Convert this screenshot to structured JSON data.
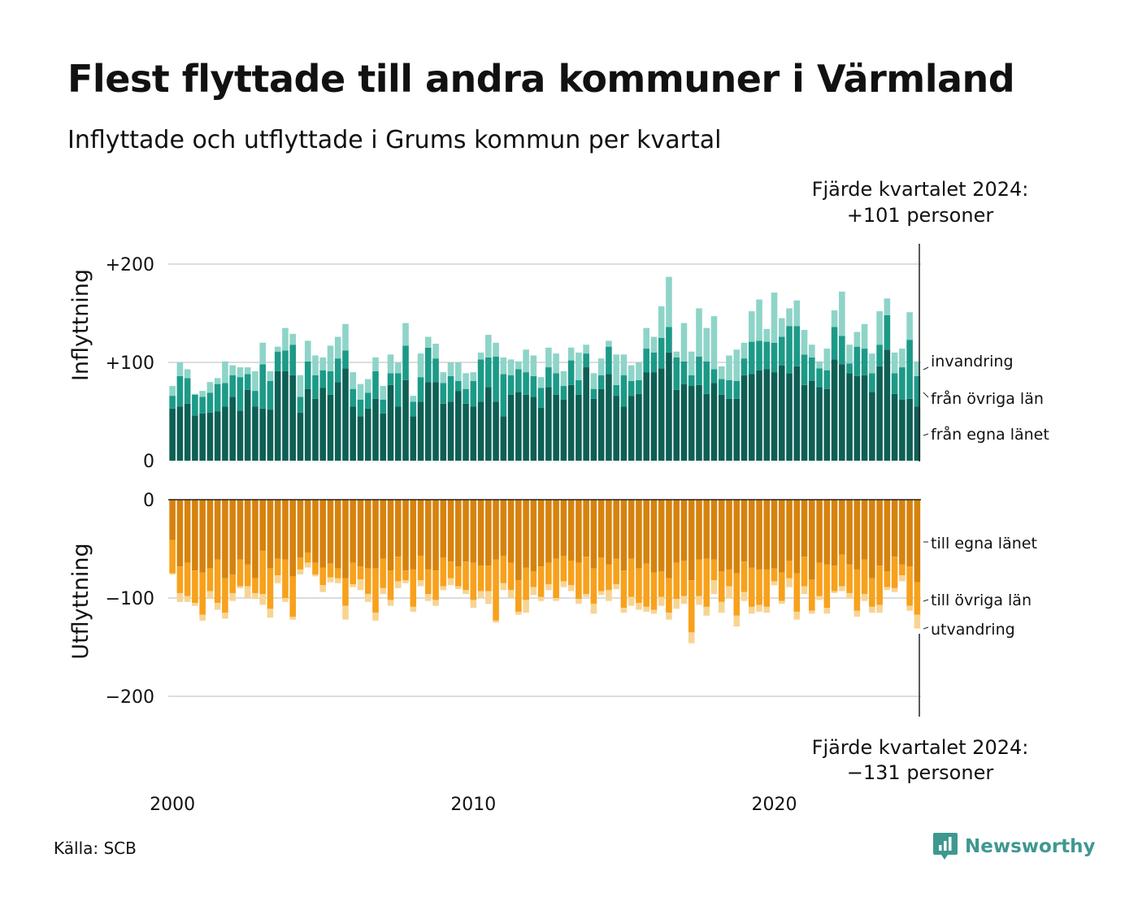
{
  "title": "Flest flyttade till andra kommuner i Värmland",
  "subtitle": "Inflyttade och utflyttade i Grums kommun per kvartal",
  "source": "Källa: SCB",
  "brand": "Newsworthy",
  "annotation_top": {
    "line1": "Fjärde kvartalet 2024:",
    "line2": "+101 personer"
  },
  "annotation_bottom": {
    "line1": "Fjärde kvartalet 2024:",
    "line2": "−131 personer"
  },
  "colors": {
    "in_own": "#0e5f55",
    "in_other": "#1c9a88",
    "in_imm": "#8ed4c8",
    "out_own": "#d6830e",
    "out_other": "#f7a11c",
    "out_emi": "#f8d493",
    "grid": "#dddddd",
    "axis": "#222222"
  },
  "chart_data": [
    {
      "type": "bar",
      "stacked": true,
      "ylabel": "Inflyttning",
      "ylim": [
        0,
        220
      ],
      "yticks": [
        {
          "value": 0,
          "label": "0"
        },
        {
          "value": 100,
          "label": "+100"
        },
        {
          "value": 200,
          "label": "+200"
        }
      ],
      "xticks": [
        {
          "value": 2000,
          "label": "2000"
        },
        {
          "value": 2010,
          "label": "2010"
        },
        {
          "value": 2020,
          "label": "2020"
        }
      ],
      "grid": true,
      "x": [
        "2000 Q1",
        "2000 Q2",
        "2000 Q3",
        "2000 Q4",
        "2001 Q1",
        "2001 Q2",
        "2001 Q3",
        "2001 Q4",
        "2002 Q1",
        "2002 Q2",
        "2002 Q3",
        "2002 Q4",
        "2003 Q1",
        "2003 Q2",
        "2003 Q3",
        "2003 Q4",
        "2004 Q1",
        "2004 Q2",
        "2004 Q3",
        "2004 Q4",
        "2005 Q1",
        "2005 Q2",
        "2005 Q3",
        "2005 Q4",
        "2006 Q1",
        "2006 Q2",
        "2006 Q3",
        "2006 Q4",
        "2007 Q1",
        "2007 Q2",
        "2007 Q3",
        "2007 Q4",
        "2008 Q1",
        "2008 Q2",
        "2008 Q3",
        "2008 Q4",
        "2009 Q1",
        "2009 Q2",
        "2009 Q3",
        "2009 Q4",
        "2010 Q1",
        "2010 Q2",
        "2010 Q3",
        "2010 Q4",
        "2011 Q1",
        "2011 Q2",
        "2011 Q3",
        "2011 Q4",
        "2012 Q1",
        "2012 Q2",
        "2012 Q3",
        "2012 Q4",
        "2013 Q1",
        "2013 Q2",
        "2013 Q3",
        "2013 Q4",
        "2014 Q1",
        "2014 Q2",
        "2014 Q3",
        "2014 Q4",
        "2015 Q1",
        "2015 Q2",
        "2015 Q3",
        "2015 Q4",
        "2016 Q1",
        "2016 Q2",
        "2016 Q3",
        "2016 Q4",
        "2017 Q1",
        "2017 Q2",
        "2017 Q3",
        "2017 Q4",
        "2018 Q1",
        "2018 Q2",
        "2018 Q3",
        "2018 Q4",
        "2019 Q1",
        "2019 Q2",
        "2019 Q3",
        "2019 Q4",
        "2020 Q1",
        "2020 Q2",
        "2020 Q3",
        "2020 Q4",
        "2021 Q1",
        "2021 Q2",
        "2021 Q3",
        "2021 Q4",
        "2022 Q1",
        "2022 Q2",
        "2022 Q3",
        "2022 Q4",
        "2023 Q1",
        "2023 Q2",
        "2023 Q3",
        "2023 Q4",
        "2024 Q1",
        "2024 Q2",
        "2024 Q3",
        "2024 Q4"
      ],
      "series": [
        {
          "name": "från egna länet",
          "values": [
            53,
            55,
            58,
            46,
            48,
            49,
            50,
            55,
            65,
            51,
            72,
            55,
            53,
            52,
            91,
            91,
            87,
            49,
            73,
            63,
            74,
            67,
            80,
            94,
            55,
            45,
            53,
            63,
            48,
            77,
            55,
            82,
            45,
            60,
            80,
            80,
            58,
            60,
            71,
            58,
            55,
            60,
            75,
            60,
            45,
            67,
            70,
            67,
            65,
            54,
            75,
            67,
            62,
            77,
            67,
            95,
            63,
            73,
            88,
            66,
            55,
            66,
            68,
            90,
            90,
            94,
            110,
            72,
            78,
            76,
            77,
            68,
            79,
            67,
            63,
            63,
            87,
            88,
            92,
            93,
            90,
            97,
            89,
            96,
            77,
            81,
            75,
            73,
            103,
            98,
            89,
            86,
            87,
            70,
            96,
            113,
            68,
            62,
            63,
            55
          ]
        },
        {
          "name": "från övriga län",
          "values": [
            13,
            31,
            26,
            21,
            17,
            20,
            28,
            24,
            22,
            34,
            16,
            16,
            45,
            29,
            20,
            21,
            31,
            16,
            28,
            24,
            18,
            24,
            24,
            18,
            18,
            17,
            16,
            28,
            14,
            12,
            34,
            35,
            15,
            25,
            35,
            24,
            21,
            26,
            10,
            15,
            26,
            43,
            30,
            46,
            43,
            20,
            23,
            23,
            21,
            20,
            20,
            22,
            14,
            25,
            15,
            14,
            10,
            14,
            28,
            11,
            32,
            15,
            14,
            24,
            20,
            31,
            26,
            33,
            23,
            11,
            29,
            33,
            14,
            16,
            19,
            18,
            17,
            33,
            30,
            28,
            30,
            29,
            48,
            41,
            31,
            24,
            19,
            19,
            33,
            29,
            10,
            30,
            27,
            19,
            22,
            35,
            21,
            33,
            60,
            31
          ]
        },
        {
          "name": "invandring",
          "values": [
            10,
            14,
            9,
            1,
            6,
            11,
            6,
            22,
            10,
            10,
            7,
            20,
            22,
            10,
            5,
            23,
            11,
            22,
            21,
            20,
            13,
            26,
            22,
            27,
            17,
            16,
            14,
            14,
            14,
            19,
            11,
            23,
            6,
            24,
            11,
            15,
            11,
            14,
            19,
            16,
            9,
            7,
            23,
            14,
            17,
            16,
            8,
            23,
            21,
            11,
            20,
            20,
            15,
            13,
            28,
            9,
            16,
            17,
            6,
            31,
            21,
            16,
            18,
            21,
            16,
            32,
            51,
            6,
            39,
            24,
            49,
            34,
            54,
            13,
            25,
            32,
            16,
            31,
            42,
            13,
            51,
            19,
            18,
            26,
            25,
            13,
            7,
            22,
            17,
            45,
            19,
            15,
            25,
            20,
            34,
            17,
            21,
            19,
            28,
            15
          ]
        }
      ]
    },
    {
      "type": "bar",
      "stacked": true,
      "ylabel": "Utflyttning",
      "ylim": [
        -220,
        0
      ],
      "yticks": [
        {
          "value": 0,
          "label": "0"
        },
        {
          "value": -100,
          "label": "−100"
        },
        {
          "value": -200,
          "label": "−200"
        }
      ],
      "grid": true,
      "x": [
        "2000 Q1",
        "2000 Q2",
        "2000 Q3",
        "2000 Q4",
        "2001 Q1",
        "2001 Q2",
        "2001 Q3",
        "2001 Q4",
        "2002 Q1",
        "2002 Q2",
        "2002 Q3",
        "2002 Q4",
        "2003 Q1",
        "2003 Q2",
        "2003 Q3",
        "2003 Q4",
        "2004 Q1",
        "2004 Q2",
        "2004 Q3",
        "2004 Q4",
        "2005 Q1",
        "2005 Q2",
        "2005 Q3",
        "2005 Q4",
        "2006 Q1",
        "2006 Q2",
        "2006 Q3",
        "2006 Q4",
        "2007 Q1",
        "2007 Q2",
        "2007 Q3",
        "2007 Q4",
        "2008 Q1",
        "2008 Q2",
        "2008 Q3",
        "2008 Q4",
        "2009 Q1",
        "2009 Q2",
        "2009 Q3",
        "2009 Q4",
        "2010 Q1",
        "2010 Q2",
        "2010 Q3",
        "2010 Q4",
        "2011 Q1",
        "2011 Q2",
        "2011 Q3",
        "2011 Q4",
        "2012 Q1",
        "2012 Q2",
        "2012 Q3",
        "2012 Q4",
        "2013 Q1",
        "2013 Q2",
        "2013 Q3",
        "2013 Q4",
        "2014 Q1",
        "2014 Q2",
        "2014 Q3",
        "2014 Q4",
        "2015 Q1",
        "2015 Q2",
        "2015 Q3",
        "2015 Q4",
        "2016 Q1",
        "2016 Q2",
        "2016 Q3",
        "2016 Q4",
        "2017 Q1",
        "2017 Q2",
        "2017 Q3",
        "2017 Q4",
        "2018 Q1",
        "2018 Q2",
        "2018 Q3",
        "2018 Q4",
        "2019 Q1",
        "2019 Q2",
        "2019 Q3",
        "2019 Q4",
        "2020 Q1",
        "2020 Q2",
        "2020 Q3",
        "2020 Q4",
        "2021 Q1",
        "2021 Q2",
        "2021 Q3",
        "2021 Q4",
        "2022 Q1",
        "2022 Q2",
        "2022 Q3",
        "2022 Q4",
        "2023 Q1",
        "2023 Q2",
        "2023 Q3",
        "2023 Q4",
        "2024 Q1",
        "2024 Q2",
        "2024 Q3",
        "2024 Q4"
      ],
      "series": [
        {
          "name": "till egna länet",
          "values": [
            -41,
            -68,
            -64,
            -72,
            -74,
            -70,
            -61,
            -80,
            -76,
            -61,
            -66,
            -80,
            -52,
            -70,
            -60,
            -61,
            -78,
            -59,
            -54,
            -64,
            -69,
            -65,
            -70,
            -80,
            -64,
            -68,
            -70,
            -70,
            -60,
            -72,
            -58,
            -72,
            -71,
            -57,
            -71,
            -72,
            -59,
            -63,
            -68,
            -63,
            -64,
            -67,
            -67,
            -61,
            -57,
            -64,
            -82,
            -69,
            -73,
            -68,
            -64,
            -60,
            -57,
            -62,
            -64,
            -58,
            -70,
            -59,
            -66,
            -60,
            -72,
            -60,
            -70,
            -65,
            -74,
            -73,
            -80,
            -64,
            -62,
            -82,
            -61,
            -60,
            -61,
            -73,
            -71,
            -75,
            -63,
            -69,
            -71,
            -71,
            -70,
            -74,
            -62,
            -75,
            -58,
            -81,
            -64,
            -66,
            -67,
            -56,
            -66,
            -71,
            -61,
            -80,
            -67,
            -73,
            -58,
            -66,
            -68,
            -84
          ]
        },
        {
          "name": "till övriga län",
          "values": [
            -34,
            -27,
            -34,
            -33,
            -43,
            -23,
            -44,
            -35,
            -19,
            -27,
            -22,
            -15,
            -44,
            -41,
            -17,
            -39,
            -41,
            -12,
            -10,
            -12,
            -18,
            -14,
            -10,
            -28,
            -22,
            -13,
            -26,
            -45,
            -30,
            -30,
            -25,
            -10,
            -38,
            -25,
            -25,
            -30,
            -29,
            -17,
            -20,
            -29,
            -38,
            -26,
            -26,
            -62,
            -28,
            -28,
            -32,
            -33,
            -16,
            -31,
            -22,
            -40,
            -26,
            -25,
            -37,
            -38,
            -36,
            -34,
            -26,
            -26,
            -38,
            -39,
            -35,
            -44,
            -38,
            -26,
            -35,
            -37,
            -36,
            -53,
            -37,
            -49,
            -21,
            -31,
            -17,
            -43,
            -31,
            -40,
            -36,
            -38,
            -13,
            -29,
            -18,
            -39,
            -30,
            -32,
            -34,
            -44,
            -26,
            -32,
            -29,
            -42,
            -35,
            -29,
            -40,
            -16,
            -32,
            -11,
            -40,
            -33
          ]
        },
        {
          "name": "utvandring",
          "values": [
            -1,
            -9,
            -6,
            -3,
            -6,
            -8,
            -7,
            -6,
            -8,
            -2,
            -12,
            -6,
            -11,
            -9,
            -8,
            -4,
            -3,
            -5,
            -5,
            -2,
            -7,
            -5,
            -5,
            -14,
            -3,
            -11,
            -8,
            -8,
            -6,
            -6,
            -7,
            -3,
            -5,
            -6,
            -7,
            -6,
            -4,
            -7,
            -3,
            -4,
            -8,
            -7,
            -13,
            -2,
            -7,
            -8,
            -3,
            -13,
            -8,
            -4,
            -6,
            -3,
            -6,
            -6,
            -5,
            -3,
            -10,
            -4,
            -11,
            -5,
            -5,
            -9,
            -7,
            -5,
            -4,
            -9,
            -7,
            -10,
            -8,
            -11,
            -9,
            -9,
            -14,
            -11,
            -12,
            -11,
            -9,
            -7,
            -7,
            -6,
            -4,
            -3,
            -9,
            -8,
            -8,
            -3,
            -4,
            -6,
            -2,
            -5,
            -6,
            -6,
            -7,
            -6,
            -8,
            -3,
            -4,
            -6,
            -5,
            -14
          ]
        }
      ]
    }
  ]
}
